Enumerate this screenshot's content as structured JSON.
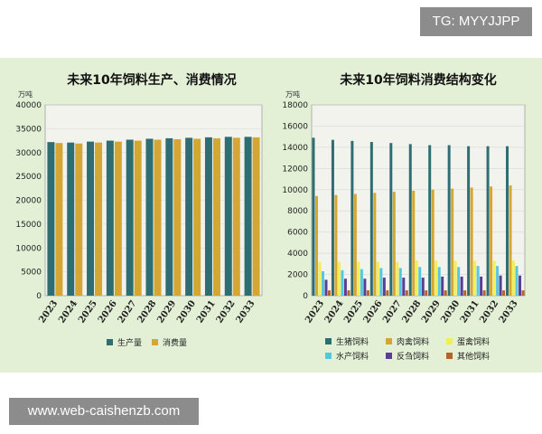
{
  "watermark_top": "TG: MYYJJPP",
  "watermark_bottom": "www.web-caishenzb.com",
  "chart_data": [
    {
      "type": "bar",
      "title": "未来10年饲料生产、消费情况",
      "ylabel": "万吨",
      "xlabel": "",
      "ylim": [
        0,
        40000
      ],
      "yticks": [
        0,
        5000,
        10000,
        15000,
        20000,
        25000,
        30000,
        35000,
        40000
      ],
      "categories": [
        "2023",
        "2024",
        "2025",
        "2026",
        "2027",
        "2028",
        "2029",
        "2030",
        "2031",
        "2032",
        "2033"
      ],
      "series": [
        {
          "name": "生产量",
          "color": "#2e6e72",
          "values": [
            32200,
            32100,
            32300,
            32500,
            32700,
            32900,
            33000,
            33100,
            33200,
            33300,
            33300
          ]
        },
        {
          "name": "消费量",
          "color": "#d4a634",
          "values": [
            32000,
            31900,
            32100,
            32300,
            32500,
            32700,
            32800,
            32900,
            33000,
            33100,
            33200
          ]
        }
      ],
      "grid": true,
      "legend": "bottom"
    },
    {
      "type": "bar",
      "title": "未来10年饲料消费结构变化",
      "ylabel": "万吨",
      "xlabel": "",
      "ylim": [
        0,
        18000
      ],
      "yticks": [
        0,
        2000,
        4000,
        6000,
        8000,
        10000,
        12000,
        14000,
        16000,
        18000
      ],
      "categories": [
        "2023",
        "2024",
        "2025",
        "2026",
        "2027",
        "2028",
        "2029",
        "2030",
        "2031",
        "2032",
        "2033"
      ],
      "series": [
        {
          "name": "生猪饲料",
          "color": "#2e6e72",
          "values": [
            14900,
            14700,
            14600,
            14500,
            14400,
            14300,
            14200,
            14200,
            14100,
            14100,
            14100
          ]
        },
        {
          "name": "肉禽饲料",
          "color": "#d4a634",
          "values": [
            9400,
            9500,
            9600,
            9700,
            9800,
            9900,
            10000,
            10100,
            10200,
            10300,
            10400
          ]
        },
        {
          "name": "蛋禽饲料",
          "color": "#f2ee58",
          "values": [
            3200,
            3200,
            3200,
            3200,
            3200,
            3300,
            3300,
            3300,
            3300,
            3300,
            3300
          ]
        },
        {
          "name": "水产饲料",
          "color": "#55c8e0",
          "values": [
            2300,
            2400,
            2500,
            2600,
            2600,
            2700,
            2700,
            2700,
            2800,
            2800,
            2800
          ]
        },
        {
          "name": "反刍饲料",
          "color": "#5a3e96",
          "values": [
            1500,
            1600,
            1600,
            1700,
            1700,
            1700,
            1800,
            1800,
            1800,
            1900,
            1900
          ]
        },
        {
          "name": "其他饲料",
          "color": "#b56426",
          "values": [
            500,
            500,
            500,
            500,
            500,
            500,
            500,
            500,
            500,
            500,
            500
          ]
        }
      ],
      "grid": true,
      "legend": "bottom"
    }
  ]
}
